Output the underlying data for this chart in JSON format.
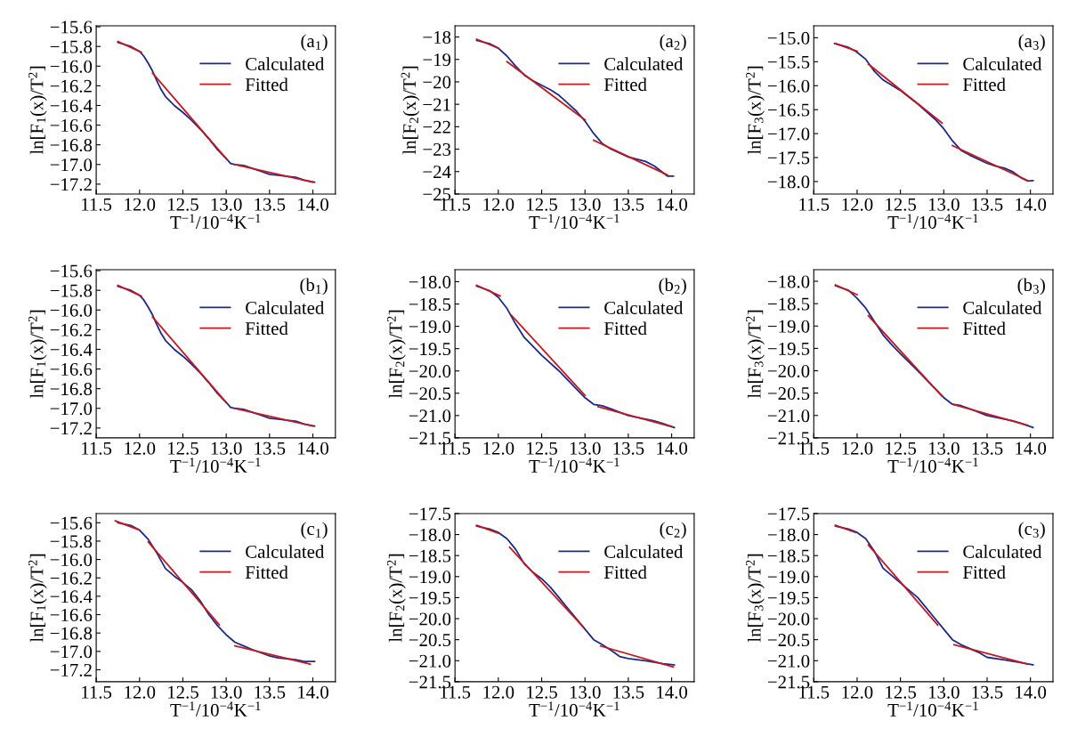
{
  "chart_data": [
    {
      "type": "line",
      "xlabel": "T$^{−1}$/10$^{−4}$K$^{−1}$",
      "ylabel": "ln[F$_{1}$(x)/T$^{2}$]",
      "annotations": [
        "(a$_{1}$)"
      ],
      "legend": "top right",
      "xlim": [
        11.5,
        14.26
      ],
      "xticks": [
        {
          "value": 11.5,
          "label": "11.5"
        },
        {
          "value": 12,
          "label": "12.0"
        },
        {
          "value": 12.5,
          "label": "12.5"
        },
        {
          "value": 13,
          "label": "13.0"
        },
        {
          "value": 13.5,
          "label": "13.5"
        },
        {
          "value": 14,
          "label": "14.0"
        }
      ],
      "ylim": [
        -17.3,
        -15.59
      ],
      "yticks": [
        {
          "value": -17.2,
          "label": "−17.2"
        },
        {
          "value": -17,
          "label": "−17.0"
        },
        {
          "value": -16.8,
          "label": "−16.8"
        },
        {
          "value": -16.6,
          "label": "−16.6"
        },
        {
          "value": -16.4,
          "label": "−16.4"
        },
        {
          "value": -16.2,
          "label": "−16.2"
        },
        {
          "value": -16,
          "label": "−16.0"
        },
        {
          "value": -15.8,
          "label": "−15.8"
        },
        {
          "value": -15.6,
          "label": "−15.6"
        }
      ],
      "series": [
        {
          "name": "Calculated",
          "color": "#1a2a8a",
          "x": [
            11.75,
            11.9,
            12.0,
            12.05,
            12.1,
            12.15,
            12.2,
            12.25,
            12.3,
            12.4,
            12.5,
            12.6,
            12.7,
            12.8,
            12.9,
            13.0,
            13.05,
            13.1,
            13.2,
            13.3,
            13.4,
            13.5,
            13.6,
            13.7,
            13.8,
            13.9,
            14.02
          ],
          "values": [
            -15.76,
            -15.8,
            -15.85,
            -15.9,
            -15.97,
            -16.05,
            -16.15,
            -16.24,
            -16.31,
            -16.4,
            -16.47,
            -16.55,
            -16.64,
            -16.74,
            -16.85,
            -16.94,
            -16.99,
            -17.0,
            -17.01,
            -17.04,
            -17.07,
            -17.1,
            -17.11,
            -17.12,
            -17.13,
            -17.16,
            -17.18
          ]
        },
        {
          "name": "Fitted",
          "color": "#c8161d",
          "x": [
            11.75,
            12.02
          ],
          "values": [
            -15.75,
            -15.86
          ]
        },
        {
          "color": "#c8161d",
          "x": [
            12.15,
            13.0
          ],
          "values": [
            -16.07,
            -16.94
          ]
        },
        {
          "color": "#c8161d",
          "x": [
            13.1,
            14.0
          ],
          "values": [
            -17.0,
            -17.18
          ]
        }
      ]
    },
    {
      "type": "line",
      "xlabel": "T$^{−1}$/10$^{−4}$K$^{−1}$",
      "ylabel": "ln[F$_{2}$(x)/T$^{2}$]",
      "annotations": [
        "(a$_{2}$)"
      ],
      "legend": "top right",
      "xlim": [
        11.5,
        14.26
      ],
      "xticks": [
        {
          "value": 11.5,
          "label": "11.5"
        },
        {
          "value": 12,
          "label": "12.0"
        },
        {
          "value": 12.5,
          "label": "12.5"
        },
        {
          "value": 13,
          "label": "13.0"
        },
        {
          "value": 13.5,
          "label": "13.5"
        },
        {
          "value": 14,
          "label": "14.0"
        }
      ],
      "ylim": [
        -25,
        -17.5
      ],
      "yticks": [
        {
          "value": -25,
          "label": "−25"
        },
        {
          "value": -24,
          "label": "−24"
        },
        {
          "value": -23,
          "label": "−23"
        },
        {
          "value": -22,
          "label": "−22"
        },
        {
          "value": -21,
          "label": "−21"
        },
        {
          "value": -20,
          "label": "−20"
        },
        {
          "value": -19,
          "label": "−19"
        },
        {
          "value": -18,
          "label": "−18"
        }
      ],
      "series": [
        {
          "name": "Calculated",
          "color": "#1a2a8a",
          "x": [
            11.75,
            11.9,
            12.0,
            12.1,
            12.2,
            12.3,
            12.4,
            12.5,
            12.6,
            12.7,
            12.8,
            12.9,
            13.0,
            13.1,
            13.2,
            13.3,
            13.5,
            13.7,
            13.8,
            13.95,
            14.02
          ],
          "values": [
            -18.15,
            -18.3,
            -18.5,
            -18.85,
            -19.3,
            -19.7,
            -19.95,
            -20.15,
            -20.35,
            -20.6,
            -20.95,
            -21.3,
            -21.75,
            -22.3,
            -22.75,
            -23.0,
            -23.35,
            -23.55,
            -23.75,
            -24.2,
            -24.2
          ]
        },
        {
          "name": "Fitted",
          "color": "#c8161d",
          "x": [
            11.75,
            12.0
          ],
          "values": [
            -18.1,
            -18.5
          ]
        },
        {
          "color": "#c8161d",
          "x": [
            12.1,
            13.0
          ],
          "values": [
            -19.1,
            -21.7
          ]
        },
        {
          "color": "#c8161d",
          "x": [
            13.1,
            13.95
          ],
          "values": [
            -22.6,
            -24.15
          ]
        }
      ]
    },
    {
      "type": "line",
      "xlabel": "T$^{−1}$/10$^{−4}$K$^{−1}$",
      "ylabel": "ln[F$_{3}$(x)/T$^{2}$]",
      "annotations": [
        "(a$_{3}$)"
      ],
      "legend": "top right",
      "xlim": [
        11.5,
        14.26
      ],
      "xticks": [
        {
          "value": 11.5,
          "label": "11.5"
        },
        {
          "value": 12,
          "label": "12.0"
        },
        {
          "value": 12.5,
          "label": "12.5"
        },
        {
          "value": 13,
          "label": "13.0"
        },
        {
          "value": 13.5,
          "label": "13.5"
        },
        {
          "value": 14,
          "label": "14.0"
        }
      ],
      "ylim": [
        -18.26,
        -14.75
      ],
      "yticks": [
        {
          "value": -18,
          "label": "−18.0"
        },
        {
          "value": -17.5,
          "label": "−17.5"
        },
        {
          "value": -17,
          "label": "−17.0"
        },
        {
          "value": -16.5,
          "label": "−16.5"
        },
        {
          "value": -16,
          "label": "−16.0"
        },
        {
          "value": -15.5,
          "label": "−15.5"
        },
        {
          "value": -15,
          "label": "−15.0"
        }
      ],
      "series": [
        {
          "name": "Calculated",
          "color": "#1a2a8a",
          "x": [
            11.74,
            11.9,
            11.99,
            12.1,
            12.2,
            12.3,
            12.5,
            12.7,
            12.9,
            13.0,
            13.1,
            13.2,
            13.3,
            13.5,
            13.6,
            13.7,
            13.8,
            13.9,
            13.97,
            14.03
          ],
          "values": [
            -15.12,
            -15.2,
            -15.29,
            -15.45,
            -15.7,
            -15.88,
            -16.1,
            -16.38,
            -16.7,
            -16.9,
            -17.15,
            -17.35,
            -17.45,
            -17.62,
            -17.68,
            -17.72,
            -17.8,
            -17.93,
            -17.99,
            -17.98
          ]
        },
        {
          "name": "Fitted",
          "color": "#c8161d",
          "x": [
            11.75,
            12.0
          ],
          "values": [
            -15.12,
            -15.28
          ]
        },
        {
          "color": "#c8161d",
          "x": [
            12.13,
            12.98
          ],
          "values": [
            -15.55,
            -16.78
          ]
        },
        {
          "color": "#c8161d",
          "x": [
            13.1,
            13.97
          ],
          "values": [
            -17.25,
            -17.98
          ]
        }
      ]
    },
    {
      "type": "line",
      "xlabel": "T$^{−1}$/10$^{−4}$K$^{−1}$",
      "ylabel": "ln[F$_{1}$(x)/T$^{2}$]",
      "annotations": [
        "(b$_{1}$)"
      ],
      "legend": "top right",
      "xlim": [
        11.5,
        14.26
      ],
      "xticks": [
        {
          "value": 11.5,
          "label": "11.5"
        },
        {
          "value": 12,
          "label": "12.0"
        },
        {
          "value": 12.5,
          "label": "12.5"
        },
        {
          "value": 13,
          "label": "13.0"
        },
        {
          "value": 13.5,
          "label": "13.5"
        },
        {
          "value": 14,
          "label": "14.0"
        }
      ],
      "ylim": [
        -17.3,
        -15.59
      ],
      "yticks": [
        {
          "value": -17.2,
          "label": "−17.2"
        },
        {
          "value": -17,
          "label": "−17.0"
        },
        {
          "value": -16.8,
          "label": "−16.8"
        },
        {
          "value": -16.6,
          "label": "−16.6"
        },
        {
          "value": -16.4,
          "label": "−16.4"
        },
        {
          "value": -16.2,
          "label": "−16.2"
        },
        {
          "value": -16,
          "label": "−16.0"
        },
        {
          "value": -15.8,
          "label": "−15.8"
        },
        {
          "value": -15.6,
          "label": "−15.6"
        }
      ],
      "series": [
        {
          "name": "Calculated",
          "color": "#1a2a8a",
          "x": [
            11.75,
            11.9,
            12.0,
            12.05,
            12.1,
            12.15,
            12.2,
            12.25,
            12.3,
            12.4,
            12.5,
            12.6,
            12.7,
            12.8,
            12.9,
            13.0,
            13.05,
            13.1,
            13.2,
            13.3,
            13.4,
            13.5,
            13.6,
            13.7,
            13.8,
            13.9,
            14.02
          ],
          "values": [
            -15.76,
            -15.8,
            -15.85,
            -15.9,
            -15.97,
            -16.05,
            -16.15,
            -16.24,
            -16.31,
            -16.4,
            -16.47,
            -16.55,
            -16.64,
            -16.74,
            -16.85,
            -16.94,
            -16.99,
            -17.0,
            -17.01,
            -17.04,
            -17.07,
            -17.1,
            -17.11,
            -17.12,
            -17.13,
            -17.16,
            -17.18
          ]
        },
        {
          "name": "Fitted",
          "color": "#c8161d",
          "x": [
            11.75,
            12.02
          ],
          "values": [
            -15.75,
            -15.86
          ]
        },
        {
          "color": "#c8161d",
          "x": [
            12.15,
            13.0
          ],
          "values": [
            -16.07,
            -16.94
          ]
        },
        {
          "color": "#c8161d",
          "x": [
            13.1,
            14.0
          ],
          "values": [
            -17.0,
            -17.18
          ]
        }
      ]
    },
    {
      "type": "line",
      "xlabel": "T$^{−1}$/10$^{−4}$K$^{−1}$",
      "ylabel": "ln[F$_{2}$(x)/T$^{2}$]",
      "annotations": [
        "(b$_{2}$)"
      ],
      "legend": "top right",
      "xlim": [
        11.5,
        14.26
      ],
      "xticks": [
        {
          "value": 11.5,
          "label": "11.5"
        },
        {
          "value": 12,
          "label": "12.0"
        },
        {
          "value": 12.5,
          "label": "12.5"
        },
        {
          "value": 13,
          "label": "13.0"
        },
        {
          "value": 13.5,
          "label": "13.5"
        },
        {
          "value": 14,
          "label": "14.0"
        }
      ],
      "ylim": [
        -21.5,
        -17.73
      ],
      "yticks": [
        {
          "value": -21.5,
          "label": "−21.5"
        },
        {
          "value": -21,
          "label": "−21.0"
        },
        {
          "value": -20.5,
          "label": "−20.5"
        },
        {
          "value": -20,
          "label": "−20.0"
        },
        {
          "value": -19.5,
          "label": "−19.5"
        },
        {
          "value": -19,
          "label": "−19.0"
        },
        {
          "value": -18.5,
          "label": "−18.5"
        },
        {
          "value": -18,
          "label": "−18.0"
        }
      ],
      "series": [
        {
          "name": "Calculated",
          "color": "#1a2a8a",
          "x": [
            11.75,
            11.9,
            12.0,
            12.1,
            12.2,
            12.3,
            12.4,
            12.5,
            12.7,
            12.9,
            13.0,
            13.1,
            13.2,
            13.3,
            13.5,
            13.7,
            13.8,
            13.9,
            14.03
          ],
          "values": [
            -18.1,
            -18.2,
            -18.35,
            -18.6,
            -18.95,
            -19.25,
            -19.45,
            -19.65,
            -20.0,
            -20.4,
            -20.6,
            -20.75,
            -20.78,
            -20.85,
            -21.0,
            -21.08,
            -21.12,
            -21.18,
            -21.27
          ]
        },
        {
          "name": "Fitted",
          "color": "#c8161d",
          "x": [
            11.75,
            12.02
          ],
          "values": [
            -18.08,
            -18.32
          ]
        },
        {
          "color": "#c8161d",
          "x": [
            12.15,
            13.0
          ],
          "values": [
            -18.75,
            -20.55
          ]
        },
        {
          "color": "#c8161d",
          "x": [
            13.15,
            14.0
          ],
          "values": [
            -20.8,
            -21.25
          ]
        }
      ]
    },
    {
      "type": "line",
      "xlabel": "T$^{−1}$/10$^{−4}$K$^{−1}$",
      "ylabel": "ln[F$_{3}$(x)/T$^{2}$]",
      "annotations": [
        "(b$_{3}$)"
      ],
      "legend": "top right",
      "xlim": [
        11.5,
        14.26
      ],
      "xticks": [
        {
          "value": 11.5,
          "label": "11.5"
        },
        {
          "value": 12,
          "label": "12.0"
        },
        {
          "value": 12.5,
          "label": "12.5"
        },
        {
          "value": 13,
          "label": "13.0"
        },
        {
          "value": 13.5,
          "label": "13.5"
        },
        {
          "value": 14,
          "label": "14.0"
        }
      ],
      "ylim": [
        -21.5,
        -17.74
      ],
      "yticks": [
        {
          "value": -21.5,
          "label": "−21.5"
        },
        {
          "value": -21,
          "label": "−21.0"
        },
        {
          "value": -20.5,
          "label": "−20.5"
        },
        {
          "value": -20,
          "label": "−20.0"
        },
        {
          "value": -19.5,
          "label": "−19.5"
        },
        {
          "value": -19,
          "label": "−19.0"
        },
        {
          "value": -18.5,
          "label": "−18.5"
        },
        {
          "value": -18,
          "label": "−18.0"
        }
      ],
      "series": [
        {
          "name": "Calculated",
          "color": "#1a2a8a",
          "x": [
            11.75,
            11.9,
            12.0,
            12.1,
            12.2,
            12.3,
            12.4,
            12.5,
            12.7,
            12.9,
            13.0,
            13.1,
            13.2,
            13.3,
            13.5,
            13.7,
            13.8,
            13.9,
            14.03
          ],
          "values": [
            -18.1,
            -18.2,
            -18.38,
            -18.6,
            -18.9,
            -19.2,
            -19.42,
            -19.62,
            -20.0,
            -20.4,
            -20.6,
            -20.75,
            -20.78,
            -20.85,
            -21.0,
            -21.08,
            -21.12,
            -21.18,
            -21.27
          ]
        },
        {
          "name": "Fitted",
          "color": "#c8161d",
          "x": [
            11.75,
            12.0
          ],
          "values": [
            -18.08,
            -18.3
          ]
        },
        {
          "color": "#c8161d",
          "x": [
            12.13,
            12.98
          ],
          "values": [
            -18.77,
            -20.57
          ]
        },
        {
          "color": "#c8161d",
          "x": [
            13.1,
            13.97
          ],
          "values": [
            -20.75,
            -21.22
          ]
        }
      ]
    },
    {
      "type": "line",
      "xlabel": "T$^{−1}$/10$^{−4}$K$^{−1}$",
      "ylabel": "ln[F$_{1}$(x)/T$^{2}$]",
      "annotations": [
        "(c$_{1}$)"
      ],
      "legend": "top right",
      "xlim": [
        11.5,
        14.26
      ],
      "xticks": [
        {
          "value": 11.5,
          "label": "11.5"
        },
        {
          "value": 12,
          "label": "12.0"
        },
        {
          "value": 12.5,
          "label": "12.5"
        },
        {
          "value": 13,
          "label": "13.0"
        },
        {
          "value": 13.5,
          "label": "13.5"
        },
        {
          "value": 14,
          "label": "14.0"
        }
      ],
      "ylim": [
        -17.33,
        -15.5
      ],
      "yticks": [
        {
          "value": -17.2,
          "label": "−17.2"
        },
        {
          "value": -17,
          "label": "−17.0"
        },
        {
          "value": -16.8,
          "label": "−16.8"
        },
        {
          "value": -16.6,
          "label": "−16.6"
        },
        {
          "value": -16.4,
          "label": "−16.4"
        },
        {
          "value": -16.2,
          "label": "−16.2"
        },
        {
          "value": -16,
          "label": "−16.0"
        },
        {
          "value": -15.8,
          "label": "−15.8"
        },
        {
          "value": -15.6,
          "label": "−15.6"
        }
      ],
      "series": [
        {
          "name": "Calculated",
          "color": "#1a2a8a",
          "x": [
            11.75,
            11.9,
            12.0,
            12.1,
            12.2,
            12.3,
            12.4,
            12.5,
            12.6,
            12.7,
            12.8,
            12.9,
            13.0,
            13.1,
            13.2,
            13.3,
            13.5,
            13.6,
            13.8,
            13.9,
            14.02
          ],
          "values": [
            -15.6,
            -15.63,
            -15.68,
            -15.78,
            -15.93,
            -16.1,
            -16.18,
            -16.25,
            -16.33,
            -16.45,
            -16.6,
            -16.72,
            -16.82,
            -16.9,
            -16.94,
            -16.98,
            -17.05,
            -17.07,
            -17.09,
            -17.11,
            -17.11
          ]
        },
        {
          "name": "Fitted",
          "color": "#c8161d",
          "x": [
            11.72,
            12.0
          ],
          "values": [
            -15.58,
            -15.68
          ]
        },
        {
          "color": "#c8161d",
          "x": [
            12.1,
            12.92
          ],
          "values": [
            -15.81,
            -16.71
          ]
        },
        {
          "color": "#c8161d",
          "x": [
            13.1,
            13.97
          ],
          "values": [
            -16.94,
            -17.14
          ]
        }
      ]
    },
    {
      "type": "line",
      "xlabel": "T$^{−1}$/10$^{−4}$K$^{−1}$",
      "ylabel": "ln[F$_{2}$(x)/T$^{2}$]",
      "annotations": [
        "(c$_{2}$)"
      ],
      "legend": "top right",
      "xlim": [
        11.5,
        14.26
      ],
      "xticks": [
        {
          "value": 11.5,
          "label": "11.5"
        },
        {
          "value": 12,
          "label": "12.0"
        },
        {
          "value": 12.5,
          "label": "12.5"
        },
        {
          "value": 13,
          "label": "13.0"
        },
        {
          "value": 13.5,
          "label": "13.5"
        },
        {
          "value": 14,
          "label": "14.0"
        }
      ],
      "ylim": [
        -21.5,
        -17.5
      ],
      "yticks": [
        {
          "value": -21.5,
          "label": "−21.5"
        },
        {
          "value": -21,
          "label": "−21.0"
        },
        {
          "value": -20.5,
          "label": "−20.5"
        },
        {
          "value": -20,
          "label": "−20.0"
        },
        {
          "value": -19.5,
          "label": "−19.5"
        },
        {
          "value": -19,
          "label": "−19.0"
        },
        {
          "value": -18.5,
          "label": "−18.5"
        },
        {
          "value": -18,
          "label": "−18.0"
        },
        {
          "value": -17.5,
          "label": "−17.5"
        }
      ],
      "series": [
        {
          "name": "Calculated",
          "color": "#1a2a8a",
          "x": [
            11.75,
            11.9,
            12.0,
            12.1,
            12.2,
            12.3,
            12.4,
            12.5,
            12.6,
            12.7,
            12.8,
            12.9,
            13.0,
            13.1,
            13.2,
            13.3,
            13.4,
            13.5,
            13.7,
            13.9,
            14.03
          ],
          "values": [
            -17.8,
            -17.87,
            -17.95,
            -18.1,
            -18.35,
            -18.7,
            -18.9,
            -19.05,
            -19.25,
            -19.5,
            -19.75,
            -20.0,
            -20.25,
            -20.5,
            -20.62,
            -20.75,
            -20.9,
            -20.95,
            -21.0,
            -21.07,
            -21.1
          ]
        },
        {
          "name": "Fitted",
          "color": "#c8161d",
          "x": [
            11.75,
            12.0
          ],
          "values": [
            -17.78,
            -17.97
          ]
        },
        {
          "color": "#c8161d",
          "x": [
            12.13,
            12.98
          ],
          "values": [
            -18.3,
            -20.2
          ]
        },
        {
          "color": "#c8161d",
          "x": [
            13.18,
            14.02
          ],
          "values": [
            -20.65,
            -21.15
          ]
        }
      ]
    },
    {
      "type": "line",
      "xlabel": "T$^{−1}$/10$^{−4}$K$^{−1}$",
      "ylabel": "ln[F$_{3}$(x)/T$^{2}$]",
      "annotations": [
        "(c$_{3}$)"
      ],
      "legend": "top right",
      "xlim": [
        11.5,
        14.26
      ],
      "xticks": [
        {
          "value": 11.5,
          "label": "11.5"
        },
        {
          "value": 12,
          "label": "12.0"
        },
        {
          "value": 12.5,
          "label": "12.5"
        },
        {
          "value": 13,
          "label": "13.0"
        },
        {
          "value": 13.5,
          "label": "13.5"
        },
        {
          "value": 14,
          "label": "14.0"
        }
      ],
      "ylim": [
        -21.5,
        -17.5
      ],
      "yticks": [
        {
          "value": -21.5,
          "label": "−21.5"
        },
        {
          "value": -21,
          "label": "−21.0"
        },
        {
          "value": -20.5,
          "label": "−20.5"
        },
        {
          "value": -20,
          "label": "−20.0"
        },
        {
          "value": -19.5,
          "label": "−19.5"
        },
        {
          "value": -19,
          "label": "−19.0"
        },
        {
          "value": -18.5,
          "label": "−18.5"
        },
        {
          "value": -18,
          "label": "−18.0"
        },
        {
          "value": -17.5,
          "label": "−17.5"
        }
      ],
      "series": [
        {
          "name": "Calculated",
          "color": "#1a2a8a",
          "x": [
            11.75,
            11.9,
            12.0,
            12.1,
            12.2,
            12.3,
            12.5,
            12.7,
            12.9,
            13.0,
            13.1,
            13.2,
            13.4,
            13.5,
            13.7,
            13.9,
            14.03
          ],
          "values": [
            -17.8,
            -17.87,
            -17.95,
            -18.1,
            -18.4,
            -18.8,
            -19.15,
            -19.5,
            -20.0,
            -20.25,
            -20.5,
            -20.62,
            -20.8,
            -20.92,
            -20.98,
            -21.05,
            -21.1
          ]
        },
        {
          "name": "Fitted",
          "color": "#c8161d",
          "x": [
            11.75,
            11.98
          ],
          "values": [
            -17.78,
            -17.95
          ]
        },
        {
          "color": "#c8161d",
          "x": [
            12.13,
            12.93
          ],
          "values": [
            -18.25,
            -20.15
          ]
        },
        {
          "color": "#c8161d",
          "x": [
            13.12,
            13.97
          ],
          "values": [
            -20.62,
            -21.08
          ]
        }
      ]
    }
  ]
}
